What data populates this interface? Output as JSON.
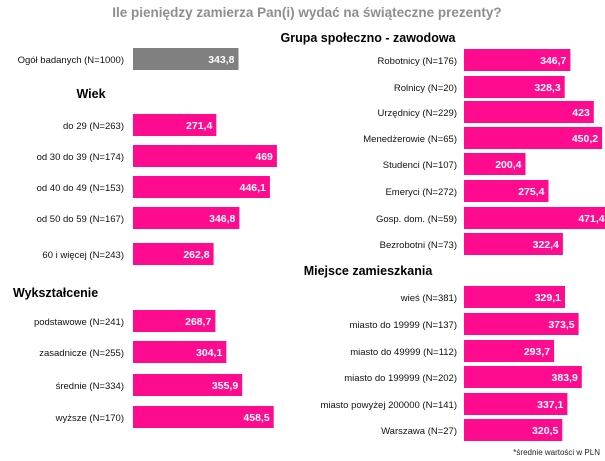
{
  "chart_data": {
    "type": "bar",
    "orientation": "horizontal",
    "title": "Ile pieniędzy zamierza Pan(i) wydać na świąteczne prezenty?",
    "footnote": "*średnie wartości w PLN",
    "unit": "PLN",
    "xlim": [
      0,
      500
    ],
    "colors": {
      "overall": "#808080",
      "bars": "#ff0b8f"
    },
    "overall": {
      "label": "Ogół badanych (N=1000)",
      "value": 343.8,
      "display": "343,8"
    },
    "groups": [
      {
        "title": "Wiek",
        "categories": [
          "do 29 (N=263)",
          "od 30 do 39 (N=174)",
          "od 40 do 49 (N=153)",
          "od 50 do 59 (N=167)",
          "60 i więcej (N=243)"
        ],
        "values": [
          271.4,
          469,
          446.1,
          346.8,
          262.8
        ],
        "display": [
          "271,4",
          "469",
          "446,1",
          "346,8",
          "262,8"
        ]
      },
      {
        "title": "Wykształcenie",
        "categories": [
          "podstawowe (N=241)",
          "zasadnicze (N=255)",
          "średnie (N=334)",
          "wyższe (N=170)"
        ],
        "values": [
          268.7,
          304.1,
          355.9,
          458.5
        ],
        "display": [
          "268,7",
          "304,1",
          "355,9",
          "458,5"
        ]
      },
      {
        "title": "Grupa społeczno - zawodowa",
        "categories": [
          "Robotnicy (N=176)",
          "Rolnicy (N=20)",
          "Urzędnicy (N=229)",
          "Menedżerowie (N=65)",
          "Studenci (N=107)",
          "Emeryci (N=272)",
          "Gosp. dom. (N=59)",
          "Bezrobotni (N=73)"
        ],
        "values": [
          346.7,
          328.3,
          423,
          450.2,
          200.4,
          275.4,
          471.4,
          322.4
        ],
        "display": [
          "346,7",
          "328,3",
          "423",
          "450,2",
          "200,4",
          "275,4",
          "471,4",
          "322,4"
        ]
      },
      {
        "title": "Miejsce zamieszkania",
        "categories": [
          "wieś (N=381)",
          "miasto do 19999 (N=137)",
          "miasto do 49999 (N=112)",
          "miasto do 199999 (N=202)",
          "miasto powyżej 200000 (N=141)",
          "Warszawa (N=27)"
        ],
        "values": [
          329.1,
          373.5,
          293.7,
          383.9,
          337.1,
          320.5
        ],
        "display": [
          "329,1",
          "373,5",
          "293,7",
          "383,9",
          "337,1",
          "320,5"
        ]
      }
    ]
  }
}
